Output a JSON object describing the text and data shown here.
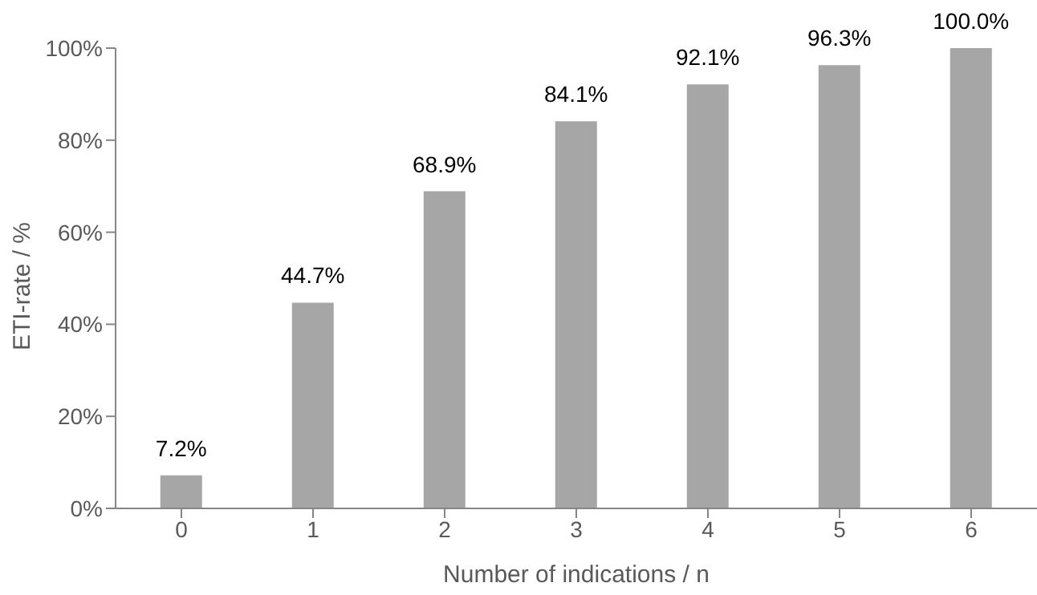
{
  "chart_data": {
    "type": "bar",
    "xlabel": "Number of indications / n",
    "ylabel": "ETI-rate / %",
    "categories": [
      "0",
      "1",
      "2",
      "3",
      "4",
      "5",
      "6"
    ],
    "values": [
      7.2,
      44.7,
      68.9,
      84.1,
      92.1,
      96.3,
      100.0
    ],
    "value_labels": [
      "7.2%",
      "44.7%",
      "68.9%",
      "84.1%",
      "92.1%",
      "96.3%",
      "100.0%"
    ],
    "color": "#a6a6a6",
    "ylim": [
      0,
      100
    ],
    "yticks": [
      {
        "value": 0,
        "label": "0%"
      },
      {
        "value": 20,
        "label": "20%"
      },
      {
        "value": 40,
        "label": "40%"
      },
      {
        "value": 60,
        "label": "60%"
      },
      {
        "value": 80,
        "label": "80%"
      },
      {
        "value": 100,
        "label": "100%"
      }
    ],
    "grid": false,
    "legend": false
  }
}
